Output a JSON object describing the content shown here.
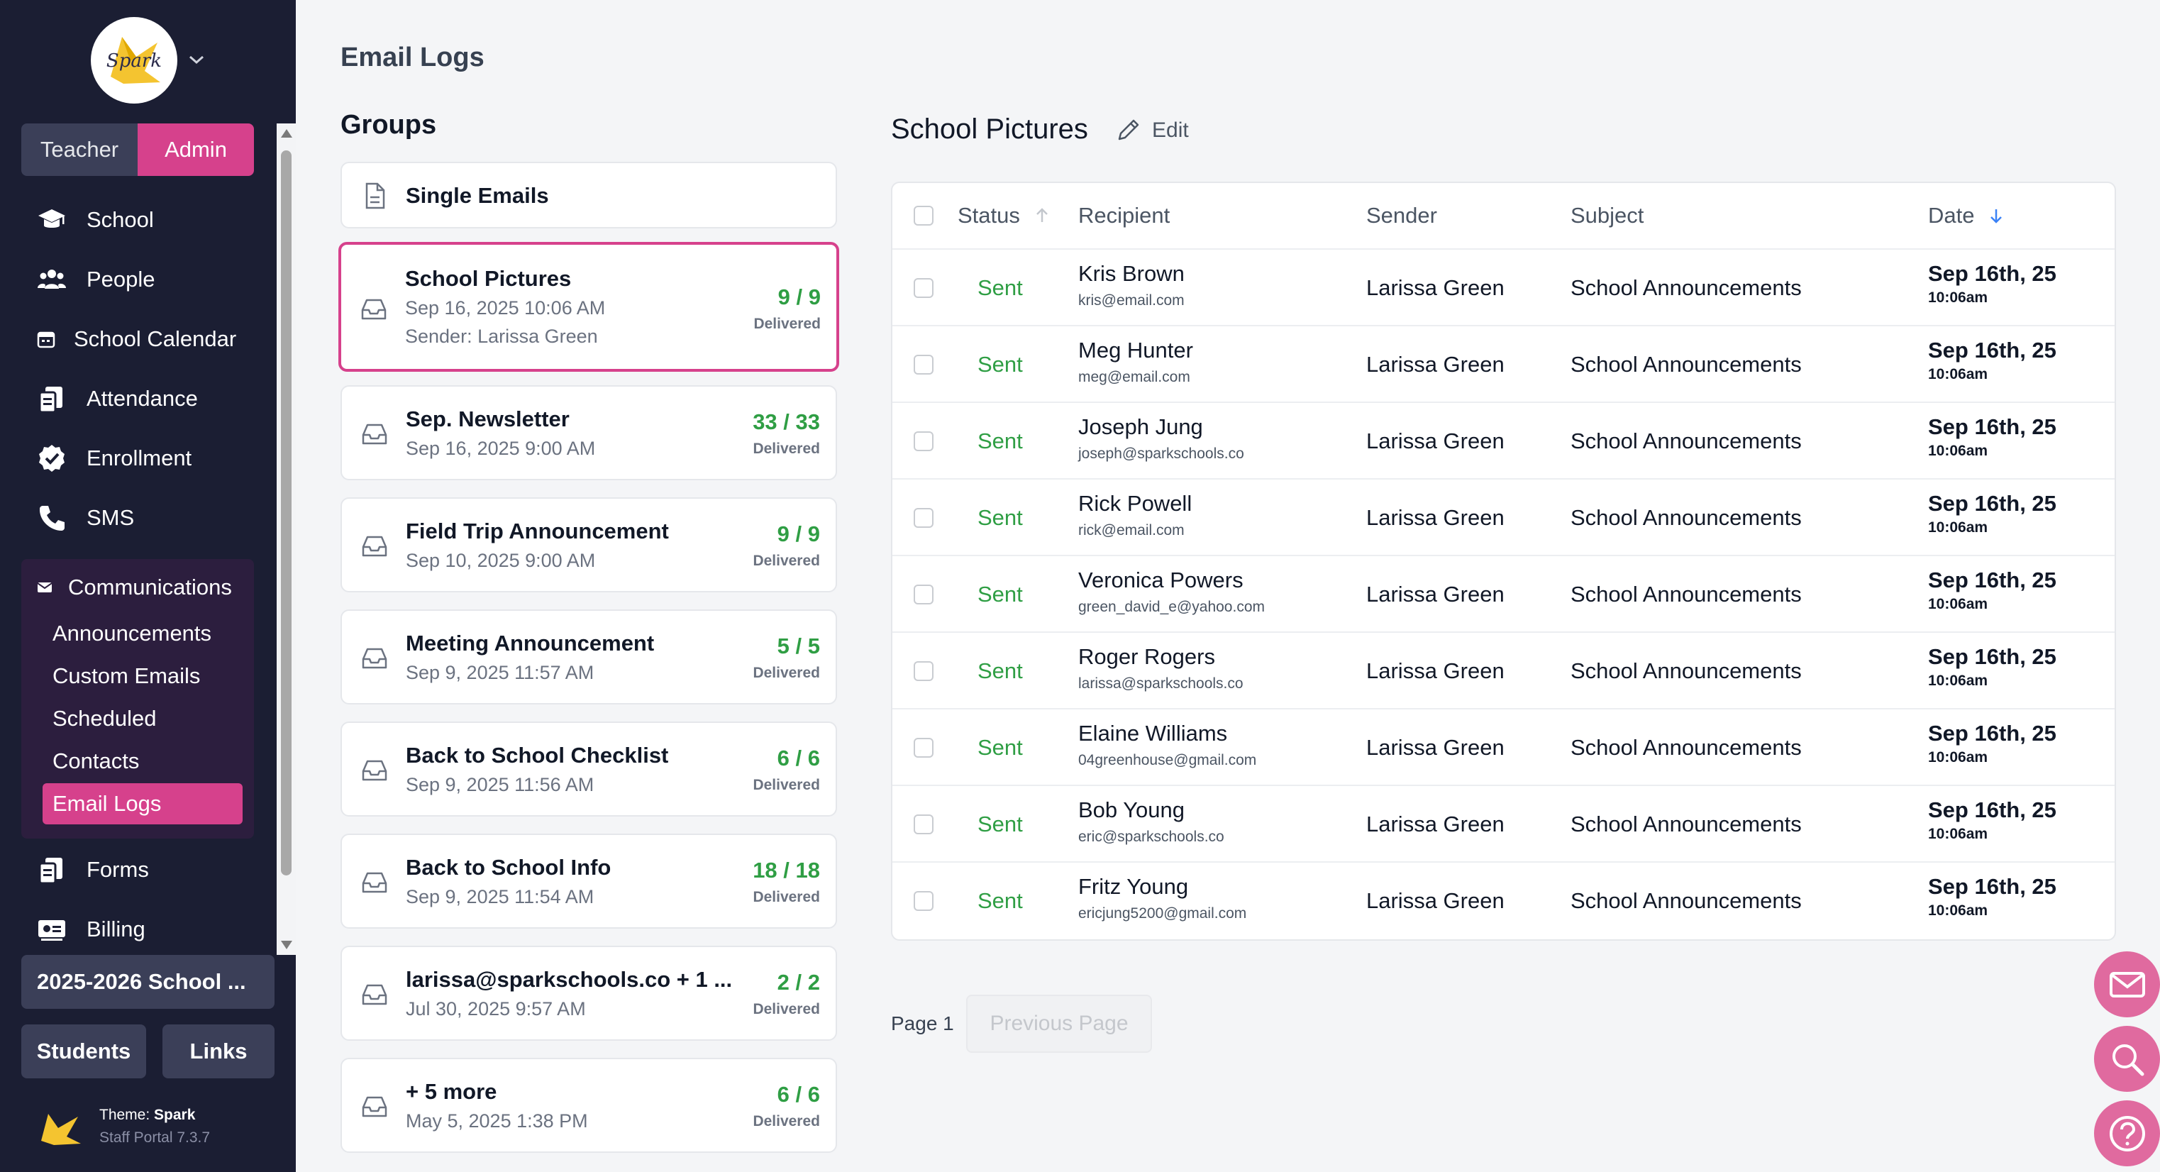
{
  "sidebar": {
    "logo_text": "Spark",
    "roles": {
      "teacher": "Teacher",
      "admin": "Admin"
    },
    "nav": [
      {
        "label": "School",
        "icon": "graduation-cap-icon"
      },
      {
        "label": "People",
        "icon": "people-icon"
      },
      {
        "label": "School Calendar",
        "icon": "calendar-icon"
      },
      {
        "label": "Attendance",
        "icon": "attendance-icon"
      },
      {
        "label": "Enrollment",
        "icon": "badge-check-icon"
      },
      {
        "label": "SMS",
        "icon": "phone-icon"
      }
    ],
    "communications": {
      "label": "Communications",
      "icon": "envelope-icon",
      "items": [
        "Announcements",
        "Custom Emails",
        "Scheduled",
        "Contacts",
        "Email Logs"
      ],
      "active": "Email Logs"
    },
    "nav_bottom": [
      {
        "label": "Forms",
        "icon": "forms-icon"
      },
      {
        "label": "Billing",
        "icon": "billing-icon"
      }
    ],
    "year_selector": "2025-2026 School ...",
    "students_button": "Students",
    "links_button": "Links",
    "theme_label": "Theme:",
    "theme_name": "Spark",
    "version": "Staff Portal 7.3.7"
  },
  "page": {
    "title": "Email Logs",
    "groups_title": "Groups"
  },
  "groups": [
    {
      "name": "Single Emails"
    },
    {
      "name": "School Pictures",
      "date": "Sep 16, 2025 10:06 AM",
      "sender": "Sender: Larissa Green",
      "count": "9 / 9",
      "status": "Delivered",
      "selected": true
    },
    {
      "name": "Sep. Newsletter",
      "date": "Sep 16, 2025 9:00 AM",
      "count": "33 / 33",
      "status": "Delivered"
    },
    {
      "name": "Field Trip Announcement",
      "date": "Sep 10, 2025 9:00 AM",
      "count": "9 / 9",
      "status": "Delivered"
    },
    {
      "name": "Meeting Announcement",
      "date": "Sep 9, 2025 11:57 AM",
      "count": "5 / 5",
      "status": "Delivered"
    },
    {
      "name": "Back to School Checklist",
      "date": "Sep 9, 2025 11:56 AM",
      "count": "6 / 6",
      "status": "Delivered"
    },
    {
      "name": "Back to School Info",
      "date": "Sep 9, 2025 11:54 AM",
      "count": "18 / 18",
      "status": "Delivered"
    },
    {
      "name": "larissa@sparkschools.co + 1 ...",
      "date": "Jul 30, 2025 9:57 AM",
      "count": "2 / 2",
      "status": "Delivered"
    },
    {
      "name": "+ 5 more",
      "date": "May 5, 2025 1:38 PM",
      "count": "6 / 6",
      "status": "Delivered"
    }
  ],
  "detail": {
    "title": "School Pictures",
    "edit_label": "Edit",
    "columns": {
      "status": "Status",
      "recipient": "Recipient",
      "sender": "Sender",
      "subject": "Subject",
      "date": "Date"
    },
    "rows": [
      {
        "status": "Sent",
        "name": "Kris Brown",
        "email": "kris@email.com",
        "sender": "Larissa Green",
        "subject": "School Announcements",
        "date": "Sep 16th, 25",
        "time": "10:06am"
      },
      {
        "status": "Sent",
        "name": "Meg Hunter",
        "email": "meg@email.com",
        "sender": "Larissa Green",
        "subject": "School Announcements",
        "date": "Sep 16th, 25",
        "time": "10:06am"
      },
      {
        "status": "Sent",
        "name": "Joseph Jung",
        "email": "joseph@sparkschools.co",
        "sender": "Larissa Green",
        "subject": "School Announcements",
        "date": "Sep 16th, 25",
        "time": "10:06am"
      },
      {
        "status": "Sent",
        "name": "Rick Powell",
        "email": "rick@email.com",
        "sender": "Larissa Green",
        "subject": "School Announcements",
        "date": "Sep 16th, 25",
        "time": "10:06am"
      },
      {
        "status": "Sent",
        "name": "Veronica Powers",
        "email": "green_david_e@yahoo.com",
        "sender": "Larissa Green",
        "subject": "School Announcements",
        "date": "Sep 16th, 25",
        "time": "10:06am"
      },
      {
        "status": "Sent",
        "name": "Roger Rogers",
        "email": "larissa@sparkschools.co",
        "sender": "Larissa Green",
        "subject": "School Announcements",
        "date": "Sep 16th, 25",
        "time": "10:06am"
      },
      {
        "status": "Sent",
        "name": "Elaine Williams",
        "email": "04greenhouse@gmail.com",
        "sender": "Larissa Green",
        "subject": "School Announcements",
        "date": "Sep 16th, 25",
        "time": "10:06am"
      },
      {
        "status": "Sent",
        "name": "Bob Young",
        "email": "eric@sparkschools.co",
        "sender": "Larissa Green",
        "subject": "School Announcements",
        "date": "Sep 16th, 25",
        "time": "10:06am"
      },
      {
        "status": "Sent",
        "name": "Fritz Young",
        "email": "ericjung5200@gmail.com",
        "sender": "Larissa Green",
        "subject": "School Announcements",
        "date": "Sep 16th, 25",
        "time": "10:06am"
      }
    ]
  },
  "pagination": {
    "page_label": "Page 1",
    "prev_label": "Previous Page"
  },
  "fabs": [
    "envelope-icon",
    "search-icon",
    "help-icon"
  ],
  "colors": {
    "sidebar": "#1b1e33",
    "accent": "#d6418c",
    "success": "#2f9e44",
    "fab": "#e06a9f"
  }
}
